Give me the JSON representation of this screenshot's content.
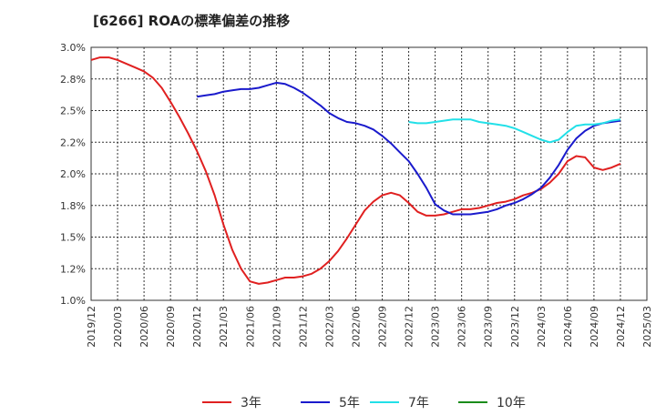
{
  "chart_title": "[6266]  ROAの標準偏差の推移",
  "chart_data": {
    "type": "line",
    "title": "[6266]  ROAの標準偏差の推移",
    "xlabel": "",
    "ylabel": "",
    "grid": true,
    "legend_placement": "bottom",
    "ylim": [
      1.0,
      3.0
    ],
    "y_ticks": [
      "1.0%",
      "1.2%",
      "1.5%",
      "1.8%",
      "2.0%",
      "2.2%",
      "2.5%",
      "2.8%",
      "3.0%"
    ],
    "x_ticks": [
      "2019/12",
      "2020/03",
      "2020/06",
      "2020/09",
      "2020/12",
      "2021/03",
      "2021/06",
      "2021/09",
      "2021/12",
      "2022/03",
      "2022/06",
      "2022/09",
      "2022/12",
      "2023/03",
      "2023/06",
      "2023/09",
      "2023/12",
      "2024/03",
      "2024/06",
      "2024/09",
      "2024/12",
      "2025/03"
    ],
    "series": [
      {
        "name": "3年",
        "color": "#e02020",
        "values": [
          [
            "2019/12",
            2.9
          ],
          [
            "2020/01",
            2.92
          ],
          [
            "2020/02",
            2.92
          ],
          [
            "2020/03",
            2.9
          ],
          [
            "2020/04",
            2.87
          ],
          [
            "2020/05",
            2.84
          ],
          [
            "2020/06",
            2.81
          ],
          [
            "2020/07",
            2.76
          ],
          [
            "2020/08",
            2.68
          ],
          [
            "2020/09",
            2.57
          ],
          [
            "2020/10",
            2.45
          ],
          [
            "2020/11",
            2.32
          ],
          [
            "2020/12",
            2.18
          ],
          [
            "2021/01",
            2.02
          ],
          [
            "2021/02",
            1.83
          ],
          [
            "2021/03",
            1.6
          ],
          [
            "2021/04",
            1.4
          ],
          [
            "2021/05",
            1.25
          ],
          [
            "2021/06",
            1.15
          ],
          [
            "2021/07",
            1.13
          ],
          [
            "2021/08",
            1.14
          ],
          [
            "2021/09",
            1.16
          ],
          [
            "2021/10",
            1.18
          ],
          [
            "2021/11",
            1.18
          ],
          [
            "2021/12",
            1.19
          ],
          [
            "2022/01",
            1.21
          ],
          [
            "2022/02",
            1.25
          ],
          [
            "2022/03",
            1.31
          ],
          [
            "2022/04",
            1.39
          ],
          [
            "2022/05",
            1.49
          ],
          [
            "2022/06",
            1.6
          ],
          [
            "2022/07",
            1.71
          ],
          [
            "2022/08",
            1.78
          ],
          [
            "2022/09",
            1.83
          ],
          [
            "2022/10",
            1.85
          ],
          [
            "2022/11",
            1.83
          ],
          [
            "2022/12",
            1.77
          ],
          [
            "2023/01",
            1.7
          ],
          [
            "2023/02",
            1.67
          ],
          [
            "2023/03",
            1.67
          ],
          [
            "2023/04",
            1.68
          ],
          [
            "2023/05",
            1.7
          ],
          [
            "2023/06",
            1.72
          ],
          [
            "2023/07",
            1.72
          ],
          [
            "2023/08",
            1.73
          ],
          [
            "2023/09",
            1.75
          ],
          [
            "2023/10",
            1.77
          ],
          [
            "2023/11",
            1.78
          ],
          [
            "2023/12",
            1.8
          ],
          [
            "2024/01",
            1.83
          ],
          [
            "2024/02",
            1.85
          ],
          [
            "2024/03",
            1.88
          ],
          [
            "2024/04",
            1.93
          ],
          [
            "2024/05",
            2.0
          ],
          [
            "2024/06",
            2.1
          ],
          [
            "2024/07",
            2.14
          ],
          [
            "2024/08",
            2.13
          ],
          [
            "2024/09",
            2.05
          ],
          [
            "2024/10",
            2.03
          ],
          [
            "2024/11",
            2.05
          ],
          [
            "2024/12",
            2.08
          ]
        ]
      },
      {
        "name": "5年",
        "color": "#1a1acc",
        "values": [
          [
            "2020/12",
            2.61
          ],
          [
            "2021/01",
            2.62
          ],
          [
            "2021/02",
            2.63
          ],
          [
            "2021/03",
            2.65
          ],
          [
            "2021/04",
            2.66
          ],
          [
            "2021/05",
            2.67
          ],
          [
            "2021/06",
            2.67
          ],
          [
            "2021/07",
            2.68
          ],
          [
            "2021/08",
            2.7
          ],
          [
            "2021/09",
            2.72
          ],
          [
            "2021/10",
            2.71
          ],
          [
            "2021/11",
            2.68
          ],
          [
            "2021/12",
            2.64
          ],
          [
            "2022/01",
            2.59
          ],
          [
            "2022/02",
            2.54
          ],
          [
            "2022/03",
            2.48
          ],
          [
            "2022/04",
            2.44
          ],
          [
            "2022/05",
            2.41
          ],
          [
            "2022/06",
            2.4
          ],
          [
            "2022/07",
            2.38
          ],
          [
            "2022/08",
            2.35
          ],
          [
            "2022/09",
            2.3
          ],
          [
            "2022/10",
            2.24
          ],
          [
            "2022/11",
            2.17
          ],
          [
            "2022/12",
            2.1
          ],
          [
            "2023/01",
            2.0
          ],
          [
            "2023/02",
            1.89
          ],
          [
            "2023/03",
            1.76
          ],
          [
            "2023/04",
            1.71
          ],
          [
            "2023/05",
            1.68
          ],
          [
            "2023/06",
            1.68
          ],
          [
            "2023/07",
            1.68
          ],
          [
            "2023/08",
            1.69
          ],
          [
            "2023/09",
            1.7
          ],
          [
            "2023/10",
            1.72
          ],
          [
            "2023/11",
            1.75
          ],
          [
            "2023/12",
            1.77
          ],
          [
            "2024/01",
            1.8
          ],
          [
            "2024/02",
            1.84
          ],
          [
            "2024/03",
            1.89
          ],
          [
            "2024/04",
            1.97
          ],
          [
            "2024/05",
            2.07
          ],
          [
            "2024/06",
            2.19
          ],
          [
            "2024/07",
            2.28
          ],
          [
            "2024/08",
            2.34
          ],
          [
            "2024/09",
            2.38
          ],
          [
            "2024/10",
            2.4
          ],
          [
            "2024/11",
            2.41
          ],
          [
            "2024/12",
            2.42
          ]
        ]
      },
      {
        "name": "7年",
        "color": "#22e0e8",
        "values": [
          [
            "2022/12",
            2.41
          ],
          [
            "2023/01",
            2.4
          ],
          [
            "2023/02",
            2.4
          ],
          [
            "2023/03",
            2.41
          ],
          [
            "2023/04",
            2.42
          ],
          [
            "2023/05",
            2.43
          ],
          [
            "2023/06",
            2.43
          ],
          [
            "2023/07",
            2.43
          ],
          [
            "2023/08",
            2.41
          ],
          [
            "2023/09",
            2.4
          ],
          [
            "2023/10",
            2.39
          ],
          [
            "2023/11",
            2.38
          ],
          [
            "2023/12",
            2.36
          ],
          [
            "2024/01",
            2.33
          ],
          [
            "2024/02",
            2.3
          ],
          [
            "2024/03",
            2.27
          ],
          [
            "2024/04",
            2.25
          ],
          [
            "2024/05",
            2.27
          ],
          [
            "2024/06",
            2.33
          ],
          [
            "2024/07",
            2.38
          ],
          [
            "2024/08",
            2.39
          ],
          [
            "2024/09",
            2.39
          ],
          [
            "2024/10",
            2.4
          ],
          [
            "2024/11",
            2.42
          ],
          [
            "2024/12",
            2.43
          ]
        ]
      },
      {
        "name": "10年",
        "color": "#1a8c1a",
        "values": []
      }
    ]
  }
}
